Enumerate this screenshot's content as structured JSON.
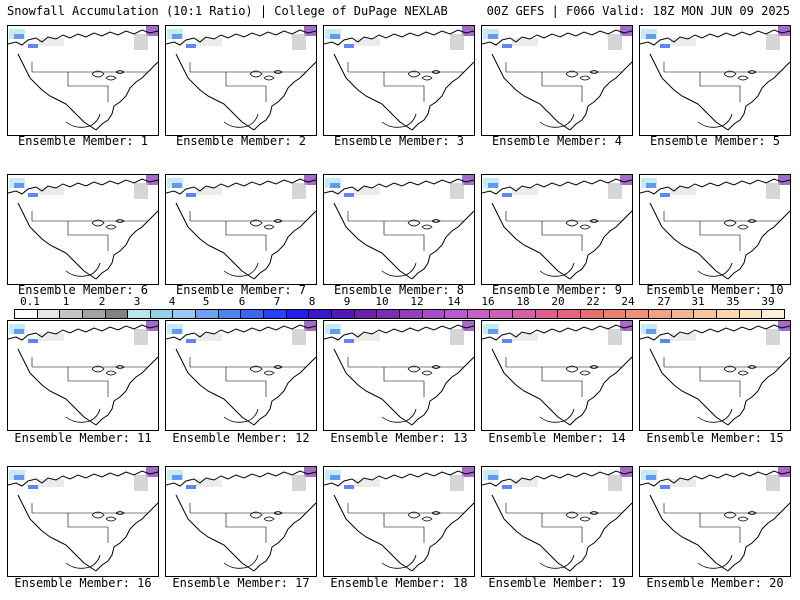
{
  "header": {
    "title_left": "Snowfall Accumulation (10:1 Ratio) | College of DuPage NEXLAB",
    "title_right": "00Z GEFS | F066 Valid: 18Z MON JUN 09 2025"
  },
  "panels": [
    {
      "label": "Ensemble Member: 1"
    },
    {
      "label": "Ensemble Member: 2"
    },
    {
      "label": "Ensemble Member: 3"
    },
    {
      "label": "Ensemble Member: 4"
    },
    {
      "label": "Ensemble Member: 5"
    },
    {
      "label": "Ensemble Member: 6"
    },
    {
      "label": "Ensemble Member: 7"
    },
    {
      "label": "Ensemble Member: 8"
    },
    {
      "label": "Ensemble Member: 9"
    },
    {
      "label": "Ensemble Member: 10"
    },
    {
      "label": "Ensemble Member: 11"
    },
    {
      "label": "Ensemble Member: 12"
    },
    {
      "label": "Ensemble Member: 13"
    },
    {
      "label": "Ensemble Member: 14"
    },
    {
      "label": "Ensemble Member: 15"
    },
    {
      "label": "Ensemble Member: 16"
    },
    {
      "label": "Ensemble Member: 17"
    },
    {
      "label": "Ensemble Member: 18"
    },
    {
      "label": "Ensemble Member: 19"
    },
    {
      "label": "Ensemble Member: 20"
    }
  ],
  "colorbar": {
    "ticks": [
      "0.1",
      "1",
      "2",
      "3",
      "4",
      "5",
      "6",
      "7",
      "8",
      "9",
      "10",
      "12",
      "14",
      "16",
      "18",
      "20",
      "22",
      "24",
      "27",
      "31",
      "35",
      "39"
    ],
    "colors": [
      "#ffffff",
      "#e6e6e6",
      "#c4c4c4",
      "#a3a3a3",
      "#828282",
      "#b9e6f0",
      "#8fd2ea",
      "#9cc8f4",
      "#6fa3f0",
      "#4a86ee",
      "#3a66f2",
      "#2542f5",
      "#1f1ff0",
      "#3b17c8",
      "#5418b0",
      "#6a1fa8",
      "#7d2db2",
      "#9140bd",
      "#a54cc6",
      "#b95ad0",
      "#c85ec8",
      "#d15fb9",
      "#d85ea6",
      "#df5f92",
      "#e5647f",
      "#e86f70",
      "#ec8071",
      "#ef9178",
      "#f2a483",
      "#f5b590",
      "#f7c79f",
      "#f9d8b0",
      "#fbe6c2",
      "#fdf1d6"
    ]
  }
}
